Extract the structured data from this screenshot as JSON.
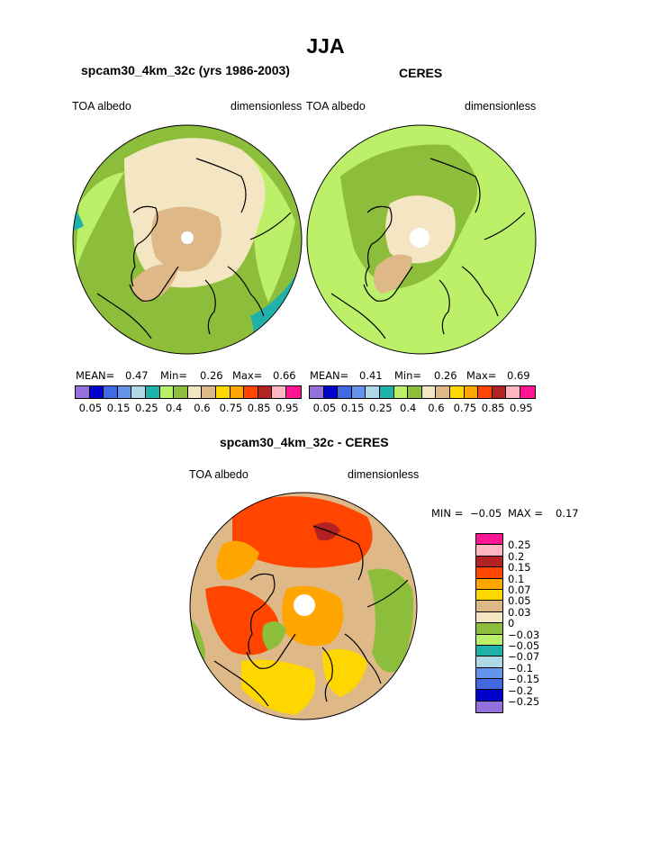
{
  "title": "JJA",
  "panels": {
    "left": {
      "title": "spcam30_4km_32c (yrs 1986-2003)",
      "var_label": "TOA albedo",
      "units_label": "dimensionless",
      "mean_label": "MEAN=",
      "mean_value": "0.47",
      "min_label": "Min=",
      "min_value": "0.26",
      "max_label": "Max=",
      "max_value": "0.66"
    },
    "right": {
      "title": "CERES",
      "var_label": "TOA albedo",
      "units_label": "dimensionless",
      "mean_label": "MEAN=",
      "mean_value": "0.41",
      "min_label": "Min=",
      "min_value": "0.26",
      "max_label": "Max=",
      "max_value": "0.69"
    },
    "diff": {
      "title": "spcam30_4km_32c - CERES",
      "var_label": "TOA albedo",
      "units_label": "dimensionless",
      "min_label": "MIN =",
      "min_value": "−0.05",
      "max_label": "MAX =",
      "max_value": "0.17"
    }
  },
  "colorbar_top": {
    "colors": [
      "#9370db",
      "#0000cd",
      "#4169e1",
      "#6495ed",
      "#add8e6",
      "#20b2aa",
      "#bdf069",
      "#8cbe3c",
      "#f5e6c3",
      "#deb887",
      "#ffd700",
      "#ffa500",
      "#ff4500",
      "#b22222",
      "#ffb6c1",
      "#ff1493"
    ],
    "tick_labels": [
      "0.05",
      "0.15",
      "0.25",
      "0.4",
      "0.6",
      "0.75",
      "0.85",
      "0.95"
    ]
  },
  "colorbar_diff": {
    "colors": [
      "#ff1493",
      "#ffb6c1",
      "#b22222",
      "#ff4500",
      "#ffa500",
      "#ffd700",
      "#deb887",
      "#f5e6c3",
      "#8cbe3c",
      "#bdf069",
      "#20b2aa",
      "#add8e6",
      "#6495ed",
      "#4169e1",
      "#0000cd",
      "#9370db"
    ],
    "tick_labels": [
      "0.25",
      "0.2",
      "0.15",
      "0.1",
      "0.07",
      "0.05",
      "0.03",
      "0",
      "−0.03",
      "−0.05",
      "−0.07",
      "−0.1",
      "−0.15",
      "−0.2",
      "−0.25"
    ]
  },
  "chart_data": [
    {
      "type": "heatmap",
      "projection": "north-polar-stereographic",
      "title": "spcam30_4km_32c (yrs 1986-2003)",
      "variable": "TOA albedo",
      "units": "dimensionless",
      "season": "JJA",
      "mean": 0.47,
      "min": 0.26,
      "max": 0.66,
      "levels": [
        0.05,
        0.1,
        0.15,
        0.2,
        0.25,
        0.3,
        0.4,
        0.5,
        0.6,
        0.7,
        0.75,
        0.8,
        0.85,
        0.9,
        0.95
      ]
    },
    {
      "type": "heatmap",
      "projection": "north-polar-stereographic",
      "title": "CERES",
      "variable": "TOA albedo",
      "units": "dimensionless",
      "season": "JJA",
      "mean": 0.41,
      "min": 0.26,
      "max": 0.69,
      "levels": [
        0.05,
        0.1,
        0.15,
        0.2,
        0.25,
        0.3,
        0.4,
        0.5,
        0.6,
        0.7,
        0.75,
        0.8,
        0.85,
        0.9,
        0.95
      ]
    },
    {
      "type": "heatmap",
      "projection": "north-polar-stereographic",
      "title": "spcam30_4km_32c - CERES",
      "variable": "TOA albedo",
      "units": "dimensionless",
      "season": "JJA",
      "min": -0.05,
      "max": 0.17,
      "levels": [
        -0.25,
        -0.2,
        -0.15,
        -0.1,
        -0.07,
        -0.05,
        -0.03,
        0,
        0.03,
        0.05,
        0.07,
        0.1,
        0.15,
        0.2,
        0.25
      ]
    }
  ]
}
